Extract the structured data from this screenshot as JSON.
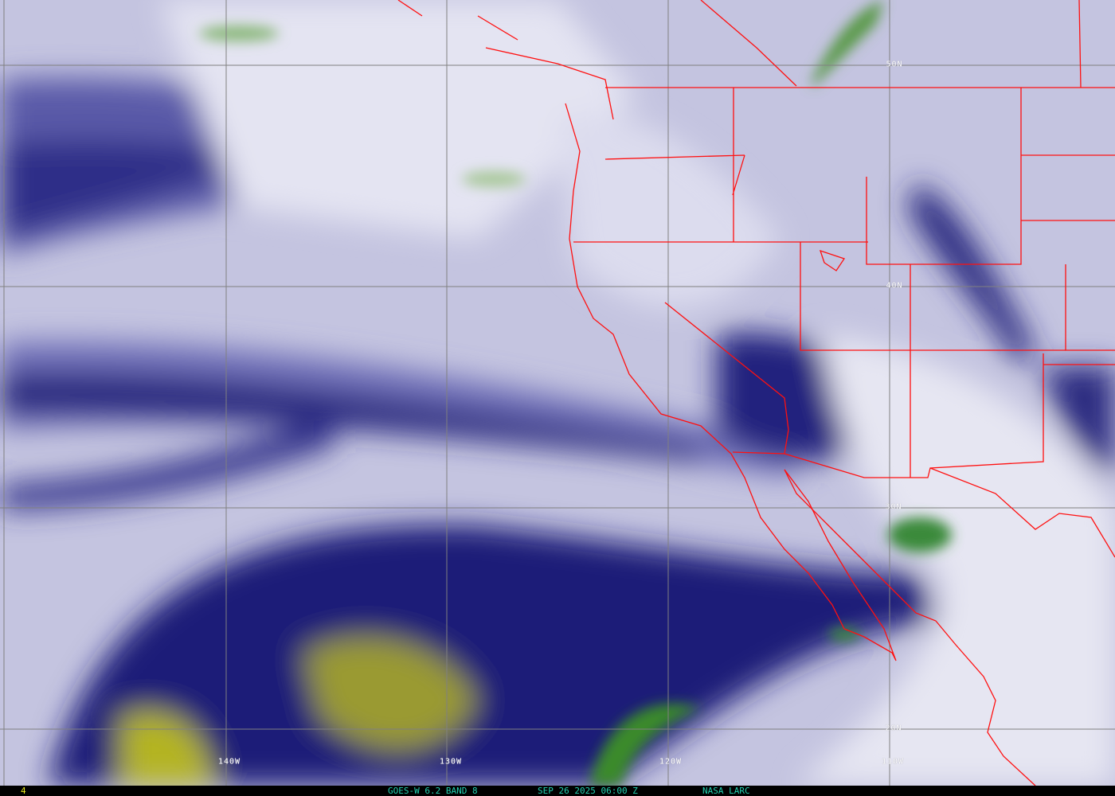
{
  "image": {
    "type": "satellite water vapor imagery",
    "colors": {
      "dry": "#1a1a78",
      "moist": "#e8e8f4",
      "very_moist": "#3a8a2a",
      "very_dry": "#b0b020",
      "borders": "#ff1010",
      "grid": "#808080"
    }
  },
  "grid_labels": {
    "lat": [
      "50N",
      "40N",
      "30N",
      "20N"
    ],
    "lon": [
      "140W",
      "130W",
      "120W",
      "110W"
    ]
  },
  "status_bar": {
    "frame": "4",
    "satellite": "GOES-W 6.2 BAND 8",
    "datetime": "SEP 26 2025 06:00 Z",
    "source": "NASA LARC"
  }
}
